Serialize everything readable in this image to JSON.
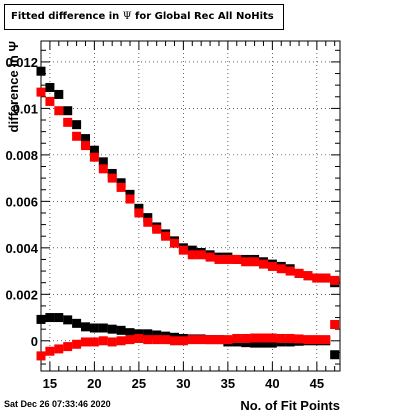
{
  "title_prefix": "Fitted difference in",
  "title_symbol": "Ψ",
  "title_suffix": "for Global Rec All NoHits",
  "timestamp": "Sat Dec 26 07:33:46 2020",
  "chart_data": {
    "type": "scatter",
    "title": "Fitted difference in Ψ for Global Rec All NoHits",
    "xlabel": "No. of Fit Points",
    "ylabel": "difference in Ψ",
    "xlim": [
      14,
      47.6
    ],
    "ylim": [
      -0.0013,
      0.0129
    ],
    "xticks": [
      15,
      20,
      25,
      30,
      35,
      40,
      45
    ],
    "xtick_labels": [
      "15",
      "20",
      "25",
      "30",
      "35",
      "40",
      "45"
    ],
    "yticks": [
      0,
      0.002,
      0.004,
      0.006,
      0.008,
      0.01,
      0.012
    ],
    "ytick_labels": [
      "0",
      "0.002",
      "0.004",
      "0.006",
      "0.008",
      "0.01",
      "0.012"
    ],
    "grid": true,
    "x": [
      14,
      15,
      16,
      17,
      18,
      19,
      20,
      21,
      22,
      23,
      24,
      25,
      26,
      27,
      28,
      29,
      30,
      31,
      32,
      33,
      34,
      35,
      36,
      37,
      38,
      39,
      40,
      41,
      42,
      43,
      44,
      45,
      46,
      47
    ],
    "series": [
      {
        "color": "#000000",
        "values": [
          0.0116,
          0.0109,
          0.0106,
          0.0099,
          0.0093,
          0.0087,
          0.0082,
          0.0077,
          0.0072,
          0.0068,
          0.0063,
          0.0057,
          0.0053,
          0.0049,
          0.0046,
          0.0043,
          0.004,
          0.0039,
          0.0038,
          0.0037,
          0.0036,
          0.0036,
          0.0035,
          0.0035,
          0.0035,
          0.0034,
          0.0033,
          0.0032,
          0.0031,
          0.0029,
          0.0028,
          0.0027,
          0.0027,
          0.0025
        ]
      },
      {
        "color": "#ff0000",
        "values": [
          0.0107,
          0.0103,
          0.0099,
          0.0094,
          0.0088,
          0.0084,
          0.0079,
          0.0074,
          0.007,
          0.0066,
          0.0061,
          0.0055,
          0.0051,
          0.0048,
          0.0045,
          0.0042,
          0.0039,
          0.0037,
          0.0037,
          0.0036,
          0.0035,
          0.0035,
          0.0035,
          0.0034,
          0.0034,
          0.0033,
          0.0032,
          0.0031,
          0.003,
          0.0029,
          0.0028,
          0.0027,
          0.0027,
          0.0026
        ]
      },
      {
        "color": "#000000",
        "values": [
          0.00092,
          0.001,
          0.001,
          0.0009,
          0.00075,
          0.0006,
          0.00055,
          0.00055,
          0.0005,
          0.00045,
          0.00035,
          0.0003,
          0.0003,
          0.00025,
          0.0002,
          0.00015,
          0.0001,
          8e-05,
          8e-05,
          5e-05,
          5e-05,
          -5e-05,
          -5e-05,
          -8e-05,
          -0.0001,
          -0.0001,
          -0.0001,
          -5e-05,
          -5e-05,
          -2e-05,
          0.0,
          0.0,
          0.0,
          -0.0006
        ]
      },
      {
        "color": "#ff0000",
        "values": [
          -0.00065,
          -0.00045,
          -0.00035,
          -0.00025,
          -0.00015,
          -5e-05,
          -5e-05,
          0.0,
          -5e-05,
          0.0,
          5e-05,
          0.0001,
          5e-05,
          5e-05,
          5e-05,
          0.0,
          0.0,
          5e-05,
          5e-05,
          5e-05,
          5e-05,
          5e-05,
          0.0001,
          0.0001,
          0.00012,
          0.00012,
          0.00012,
          0.0001,
          0.0001,
          8e-05,
          5e-05,
          5e-05,
          5e-05,
          0.0007
        ]
      }
    ]
  }
}
